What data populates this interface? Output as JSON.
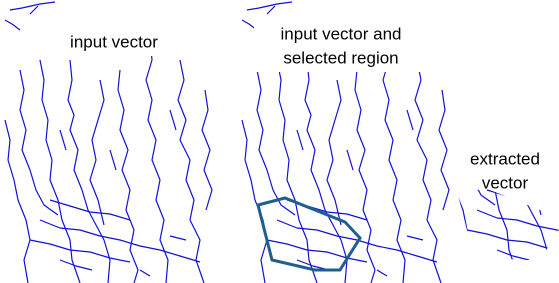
{
  "panels": [
    {
      "label_lines": [
        "input vector"
      ]
    },
    {
      "label_lines": [
        "input vector and",
        "selected region"
      ]
    },
    {
      "label_lines": [
        "extracted",
        "vector"
      ]
    }
  ]
}
